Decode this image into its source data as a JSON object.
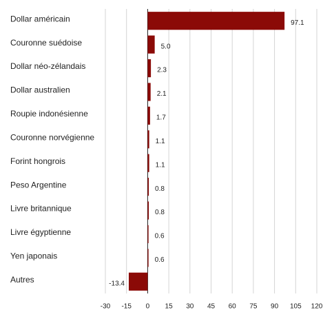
{
  "chart_data": {
    "type": "bar",
    "orientation": "horizontal",
    "categories": [
      "Dollar américain",
      "Couronne suédoise",
      "Dollar néo-zélandais",
      "Dollar australien",
      "Roupie indonésienne",
      "Couronne norvégienne",
      "Forint hongrois",
      "Peso Argentine",
      "Livre britannique",
      "Livre égyptienne",
      "Yen japonais",
      "Autres"
    ],
    "values": [
      97.1,
      5.0,
      2.3,
      2.1,
      1.7,
      1.1,
      1.1,
      0.8,
      0.8,
      0.6,
      0.6,
      -13.4
    ],
    "value_labels": [
      "97.1",
      "5.0",
      "2.3",
      "2.1",
      "1.7",
      "1.1",
      "1.1",
      "0.8",
      "0.8",
      "0.6",
      "0.6",
      "-13.4"
    ],
    "color": "#8b0a07",
    "xlim": [
      -30,
      120
    ],
    "xticks": [
      -30,
      -15,
      0,
      15,
      30,
      45,
      60,
      75,
      90,
      105,
      120
    ],
    "grid": true
  }
}
